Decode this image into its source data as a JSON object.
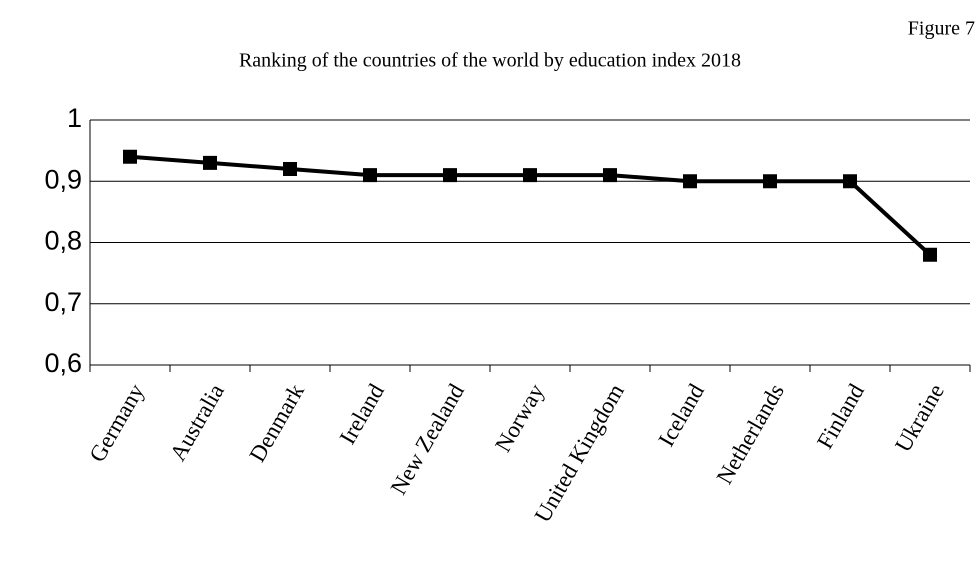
{
  "chart_data": {
    "type": "line",
    "title": "Ranking of the countries of the world by education index 2018",
    "annotation": "Figure 7",
    "categories": [
      "Germany",
      "Australia",
      "Denmark",
      "Ireland",
      "New Zealand",
      "Norway",
      "United Kingdom",
      "Iceland",
      "Netherlands",
      "Finland",
      "Ukraine"
    ],
    "values": [
      0.94,
      0.93,
      0.92,
      0.91,
      0.91,
      0.91,
      0.91,
      0.9,
      0.9,
      0.9,
      0.78
    ],
    "color": "#000000",
    "ylim": [
      0.6,
      1
    ],
    "yticks": [
      {
        "value": 0.6,
        "label": "0,6"
      },
      {
        "value": 0.7,
        "label": "0,7"
      },
      {
        "value": 0.8,
        "label": "0,8"
      },
      {
        "value": 0.9,
        "label": "0,9"
      },
      1
    ],
    "grid": true
  }
}
